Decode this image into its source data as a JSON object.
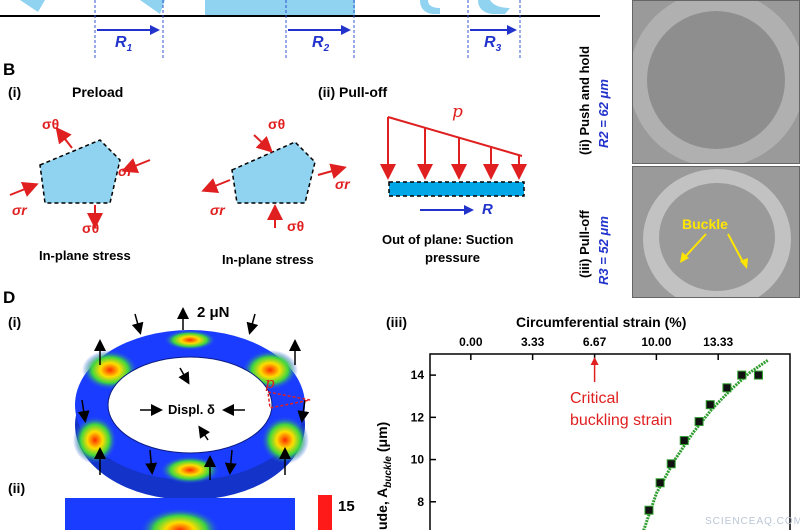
{
  "panelA": {
    "radii": [
      "R1",
      "R2",
      "R3"
    ],
    "radius_labels": [
      {
        "base": "R",
        "sub": "1"
      },
      {
        "base": "R",
        "sub": "2"
      },
      {
        "base": "R",
        "sub": "3"
      }
    ]
  },
  "panelB": {
    "letter": "B",
    "i_label": "(i)",
    "i_title": "Preload",
    "ii_label": "(ii) Pull-off",
    "stress_caption_1": "In-plane stress",
    "stress_caption_2": "In-plane stress",
    "sigma_theta": "σθ",
    "sigma_r": "σr",
    "pressure_symbol": "p",
    "radius_symbol": "R",
    "suction_caption_line1": "Out of plane: Suction",
    "suction_caption_line2": "pressure"
  },
  "micrographs": {
    "top_label": "(ii) Push and hold",
    "top_radius": "R2 = 62 μm",
    "bottom_label": "(iii) Pull-off",
    "bottom_radius": "R3 = 52 μm",
    "buckle_label": "Buckle"
  },
  "panelD": {
    "letter": "D",
    "i_label": "(i)",
    "ii_label": "(ii)",
    "force_label": "2 μN",
    "displ_label": "Displ. δ",
    "p_label": "p",
    "colorbar_max": "15"
  },
  "plot": {
    "label": "(iii)",
    "top_axis_title": "Circumferential strain (%)",
    "top_ticks": [
      "0.00",
      "3.33",
      "6.67",
      "10.00",
      "13.33"
    ],
    "y_ticks": [
      "14",
      "12",
      "10",
      "8",
      "6"
    ],
    "ylabel_partial": "ude, A",
    "ylabel_sub": "buckle",
    "ylabel_unit": " (μm)",
    "annotation_line1": "Critical",
    "annotation_line2": "buckling strain",
    "colors": {
      "data": "#111111",
      "fit": "#2e9e2e",
      "annotation": "#e02020"
    }
  },
  "chart_data": {
    "type": "scatter",
    "title": "",
    "xlabel": "Circumferential strain (%)",
    "ylabel": "Amplitude, A_buckle (μm)",
    "xlim": [
      -2.2,
      17.2
    ],
    "ylim": [
      6,
      15
    ],
    "series": [
      {
        "x": [
          9.1,
          9.6,
          10.2,
          10.8,
          11.5,
          12.3,
          12.9,
          13.8,
          14.6,
          15.5
        ],
        "y": [
          6.1,
          7.6,
          8.9,
          9.8,
          10.9,
          11.8,
          12.6,
          13.4,
          14.0,
          14.0
        ]
      }
    ],
    "fit": {
      "x": [
        9.1,
        10.0,
        11.0,
        12.0,
        13.0,
        14.0,
        15.0,
        16.0
      ],
      "y": [
        6.1,
        8.4,
        10.0,
        11.3,
        12.4,
        13.3,
        14.1,
        14.7
      ]
    },
    "annotation_x": 6.67
  },
  "watermark": "SCIENCEAQ.COM"
}
